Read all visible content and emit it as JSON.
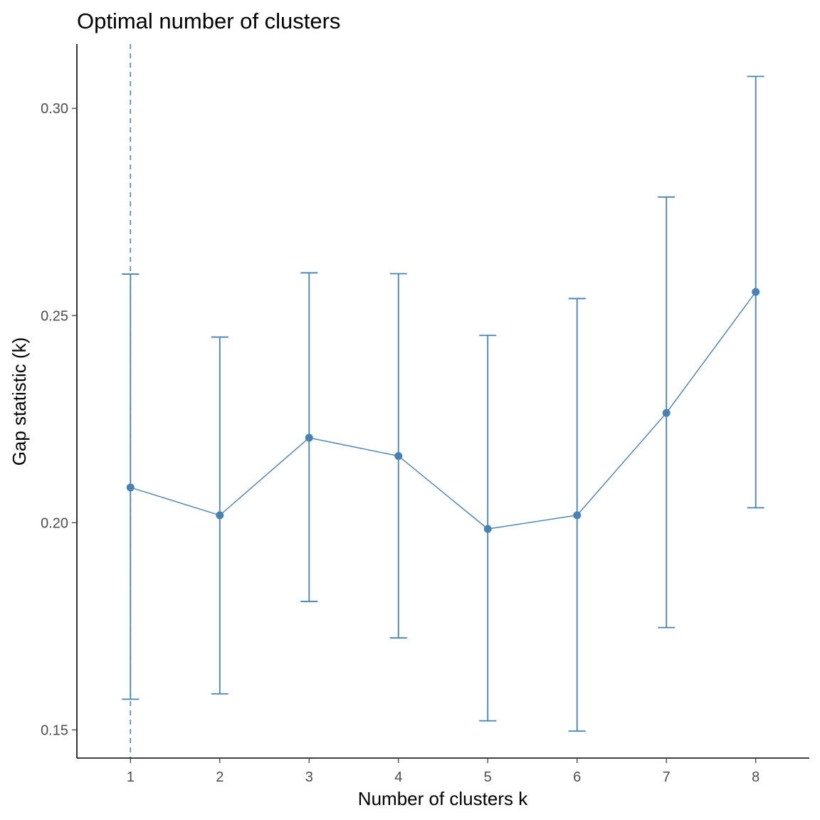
{
  "chart_data": {
    "type": "line",
    "title": "Optimal number of clusters",
    "xlabel": "Number of clusters k",
    "ylabel": "Gap statistic (k)",
    "x": [
      1,
      2,
      3,
      4,
      5,
      6,
      7,
      8
    ],
    "x_tick_labels": [
      "1",
      "2",
      "3",
      "4",
      "5",
      "6",
      "7",
      "8"
    ],
    "y_ticks": [
      0.15,
      0.2,
      0.25,
      0.3
    ],
    "y_tick_labels": [
      "0.15",
      "0.20",
      "0.25",
      "0.30"
    ],
    "xlim": [
      0.4,
      8.6
    ],
    "ylim": [
      0.1432,
      0.3155
    ],
    "series": [
      {
        "values": [
          0.2085,
          0.2018,
          0.2205,
          0.2161,
          0.1985,
          0.2018,
          0.2265,
          0.2557
        ],
        "error_low": [
          0.1574,
          0.1587,
          0.181,
          0.1722,
          0.1522,
          0.1497,
          0.1747,
          0.2036
        ],
        "error_high": [
          0.26,
          0.2448,
          0.2603,
          0.2601,
          0.2452,
          0.2541,
          0.2786,
          0.3077
        ]
      }
    ],
    "optimal_k_line": 1,
    "grid": false,
    "legend": "none",
    "colors": {
      "series": "#4682B4",
      "axis": "#000000",
      "tick_label": "#4d4d4d"
    }
  }
}
